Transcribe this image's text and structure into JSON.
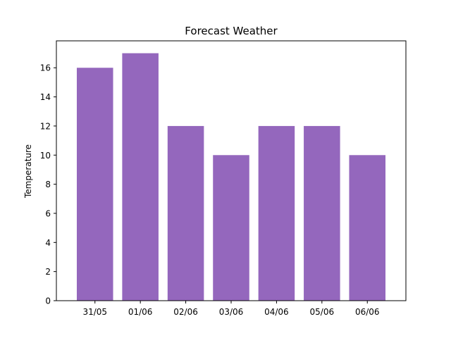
{
  "chart_data": {
    "type": "bar",
    "title": "Forecast Weather",
    "xlabel": "",
    "ylabel": "Temperature",
    "categories": [
      "31/05",
      "01/06",
      "02/06",
      "03/06",
      "04/06",
      "05/06",
      "06/06"
    ],
    "values": [
      16,
      17,
      12,
      10,
      12,
      12,
      10
    ],
    "ylim": [
      0,
      17.85
    ],
    "yticks": [
      0,
      2,
      4,
      6,
      8,
      10,
      12,
      14,
      16
    ],
    "bar_color": "#9467bd",
    "grid": false,
    "legend": "none"
  }
}
